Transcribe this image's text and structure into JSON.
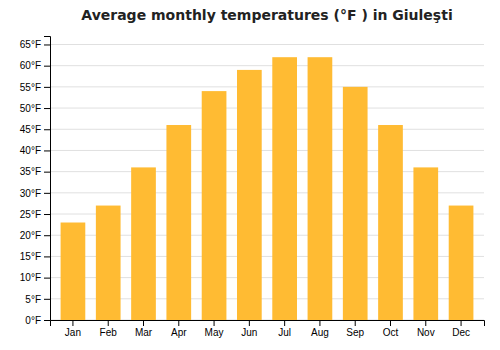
{
  "chart_data": {
    "type": "bar",
    "title": "Average monthly temperatures (°F ) in Giuleşti",
    "categories": [
      "Jan",
      "Feb",
      "Mar",
      "Apr",
      "May",
      "Jun",
      "Jul",
      "Aug",
      "Sep",
      "Oct",
      "Nov",
      "Dec"
    ],
    "values": [
      23,
      27,
      36,
      46,
      54,
      59,
      62,
      62,
      55,
      46,
      36,
      27
    ],
    "color": "#FFBB33",
    "ylim": [
      0,
      67
    ],
    "yticks": [
      {
        "value": 0,
        "label": "0°F"
      },
      {
        "value": 5,
        "label": "5°F"
      },
      {
        "value": 10,
        "label": "10°F"
      },
      {
        "value": 15,
        "label": "15°F"
      },
      {
        "value": 20,
        "label": "20°F"
      },
      {
        "value": 25,
        "label": "25°F"
      },
      {
        "value": 30,
        "label": "30°F"
      },
      {
        "value": 35,
        "label": "35°F"
      },
      {
        "value": 40,
        "label": "40°F"
      },
      {
        "value": 45,
        "label": "45°F"
      },
      {
        "value": 50,
        "label": "50°F"
      },
      {
        "value": 55,
        "label": "55°F"
      },
      {
        "value": 60,
        "label": "60°F"
      },
      {
        "value": 65,
        "label": "65°F"
      }
    ],
    "grid": true
  }
}
